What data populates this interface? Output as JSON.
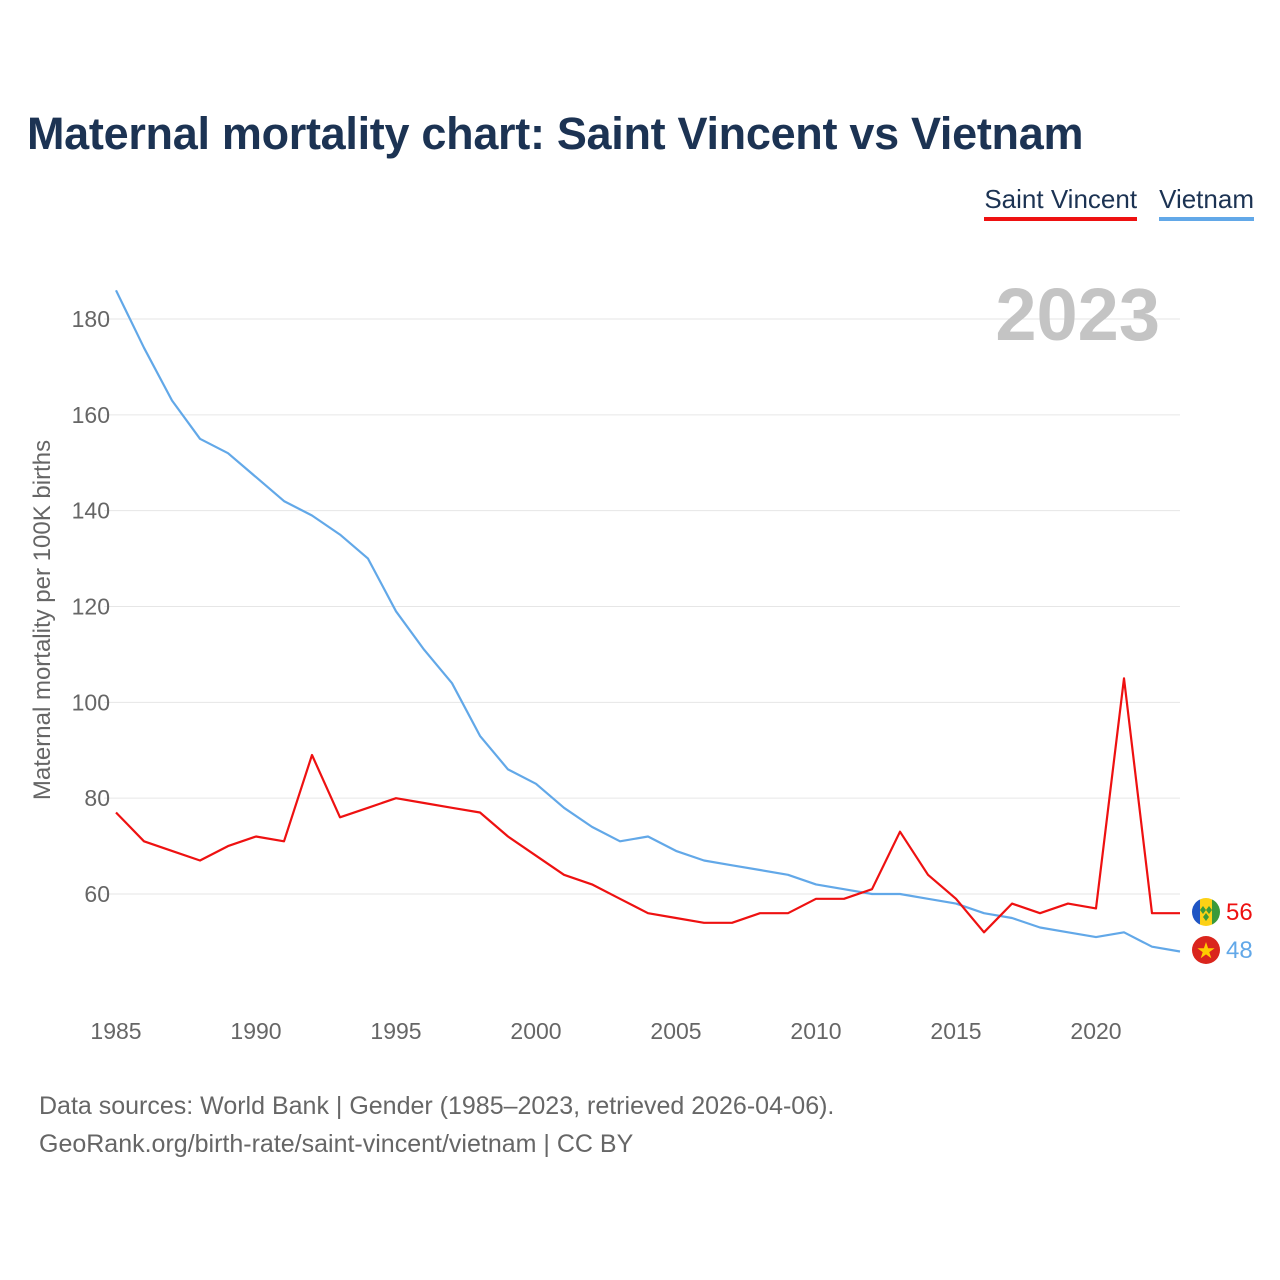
{
  "title": "Maternal mortality chart: Saint Vincent vs Vietnam",
  "legend": {
    "saint_vincent": "Saint Vincent",
    "vietnam": "Vietnam"
  },
  "source": {
    "line1": "Data sources: World Bank | Gender (1985–2023, retrieved 2026-04-06).",
    "line2": "GeoRank.org/birth-rate/saint-vincent/vietnam | CC BY"
  },
  "colors": {
    "saint_vincent": "#ee1111",
    "vietnam": "#62a8e8",
    "grid": "#e6e6e6"
  },
  "chart_data": {
    "type": "line",
    "title": "Maternal mortality chart: Saint Vincent vs Vietnam",
    "xlabel": "",
    "ylabel": "Maternal mortality per 100K births",
    "current_year_label": "2023",
    "xlim": [
      1985,
      2023
    ],
    "ylim": [
      40,
      190
    ],
    "x_ticks": [
      1985,
      1990,
      1995,
      2000,
      2005,
      2010,
      2015,
      2020
    ],
    "x_tick_labels": [
      "1985",
      "1990",
      "1995",
      "2000",
      "2005",
      "2010",
      "2015",
      "2020"
    ],
    "y_ticks": [
      60,
      80,
      100,
      120,
      140,
      160,
      180
    ],
    "y_tick_labels": [
      "60",
      "80",
      "100",
      "120",
      "140",
      "160",
      "180"
    ],
    "grid": true,
    "legend_position": "top-right",
    "x": [
      1985,
      1986,
      1987,
      1988,
      1989,
      1990,
      1991,
      1992,
      1993,
      1994,
      1995,
      1996,
      1997,
      1998,
      1999,
      2000,
      2001,
      2002,
      2003,
      2004,
      2005,
      2006,
      2007,
      2008,
      2009,
      2010,
      2011,
      2012,
      2013,
      2014,
      2015,
      2016,
      2017,
      2018,
      2019,
      2020,
      2021,
      2022,
      2023
    ],
    "series": [
      {
        "name": "Saint Vincent",
        "color": "#ee1111",
        "end_label": "56",
        "values": [
          77,
          71,
          69,
          67,
          70,
          72,
          71,
          89,
          76,
          78,
          80,
          79,
          78,
          77,
          72,
          68,
          64,
          62,
          59,
          56,
          55,
          54,
          54,
          56,
          56,
          59,
          59,
          61,
          73,
          64,
          59,
          52,
          58,
          56,
          58,
          57,
          105,
          56,
          56
        ]
      },
      {
        "name": "Vietnam",
        "color": "#62a8e8",
        "end_label": "48",
        "values": [
          186,
          174,
          163,
          155,
          152,
          147,
          142,
          139,
          135,
          130,
          119,
          111,
          104,
          93,
          86,
          83,
          78,
          74,
          71,
          72,
          69,
          67,
          66,
          65,
          64,
          62,
          61,
          60,
          60,
          59,
          58,
          56,
          55,
          53,
          52,
          51,
          52,
          49,
          48
        ]
      }
    ]
  }
}
